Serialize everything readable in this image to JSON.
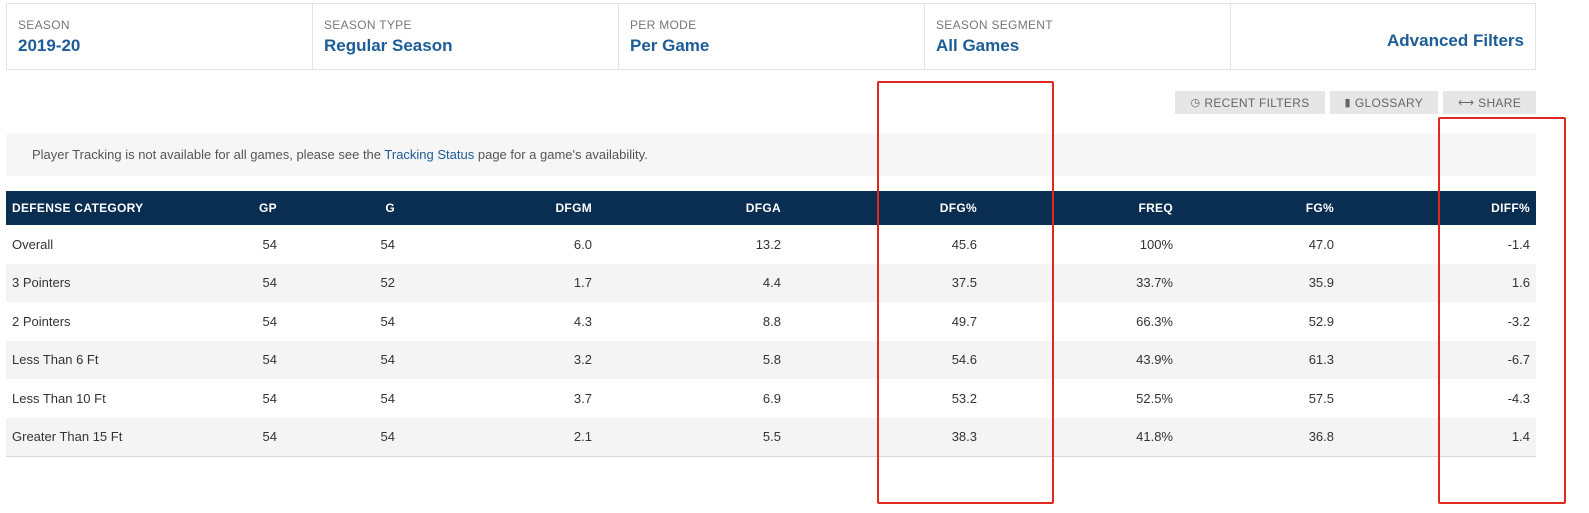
{
  "filters": [
    {
      "label": "SEASON",
      "value": "2019-20"
    },
    {
      "label": "SEASON TYPE",
      "value": "Regular Season"
    },
    {
      "label": "PER MODE",
      "value": "Per Game"
    },
    {
      "label": "SEASON SEGMENT",
      "value": "All Games"
    }
  ],
  "advanced_filters": "Advanced Filters",
  "tools": {
    "recent": "RECENT FILTERS",
    "glossary": "GLOSSARY",
    "share": "SHARE"
  },
  "notice": {
    "before": "Player Tracking is not available for all games, please see the ",
    "link": "Tracking Status",
    "after": " page for a game's availability."
  },
  "table": {
    "headers": [
      "DEFENSE CATEGORY",
      "GP",
      "G",
      "DFGM",
      "DFGA",
      "DFG%",
      "FREQ",
      "FG%",
      "DIFF%"
    ],
    "rows": [
      [
        "Overall",
        "54",
        "54",
        "6.0",
        "13.2",
        "45.6",
        "100%",
        "47.0",
        "-1.4"
      ],
      [
        "3 Pointers",
        "54",
        "52",
        "1.7",
        "4.4",
        "37.5",
        "33.7%",
        "35.9",
        "1.6"
      ],
      [
        "2 Pointers",
        "54",
        "54",
        "4.3",
        "8.8",
        "49.7",
        "66.3%",
        "52.9",
        "-3.2"
      ],
      [
        "Less Than 6 Ft",
        "54",
        "54",
        "3.2",
        "5.8",
        "54.6",
        "43.9%",
        "61.3",
        "-6.7"
      ],
      [
        "Less Than 10 Ft",
        "54",
        "54",
        "3.7",
        "6.9",
        "53.2",
        "52.5%",
        "57.5",
        "-4.3"
      ],
      [
        "Greater Than 15 Ft",
        "54",
        "54",
        "2.1",
        "5.5",
        "38.3",
        "41.8%",
        "36.8",
        "1.4"
      ]
    ]
  },
  "colors": {
    "accent": "#1d5c96",
    "header_bg": "#0a2e52",
    "highlight": "#e0281f"
  }
}
